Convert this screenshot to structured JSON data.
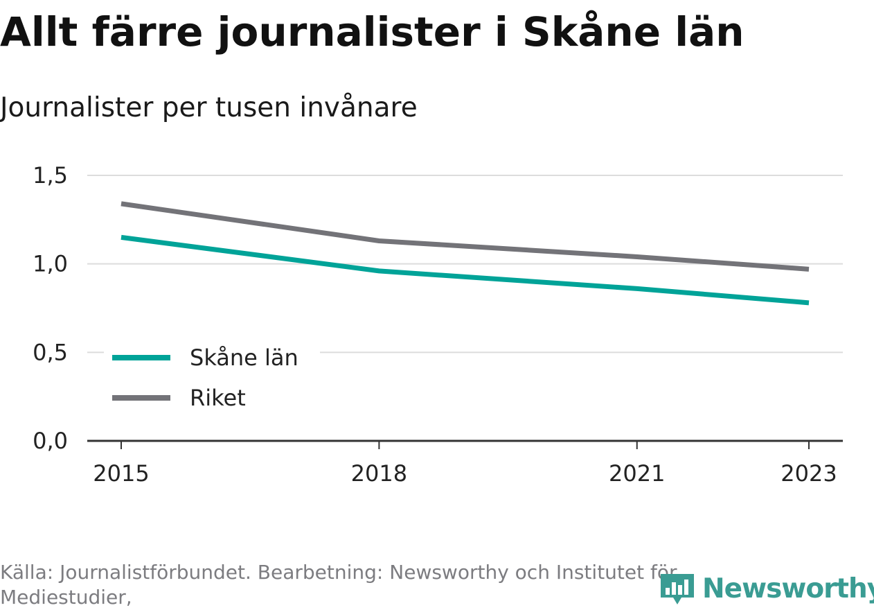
{
  "header": {
    "title": "Allt färre journalister i Skåne län",
    "subtitle": "Journalister per tusen invånare"
  },
  "footer": {
    "source": "Källa: Journalistförbundet. Bearbetning: Newsworthy och Institutet för Mediestudier,",
    "logo_text": "Newsworthy",
    "logo_color": "#3a9c93"
  },
  "chart_data": {
    "type": "line",
    "title": "Allt färre journalister i Skåne län",
    "subtitle": "Journalister per tusen invånare",
    "xlabel": "",
    "ylabel": "",
    "x": [
      2015,
      2018,
      2021,
      2023
    ],
    "x_tick_labels": [
      "2015",
      "2018",
      "2021",
      "2023"
    ],
    "xlim": [
      2015,
      2023
    ],
    "ylim": [
      0,
      1.5
    ],
    "y_ticks": [
      0,
      0.5,
      1.0,
      1.5
    ],
    "y_tick_labels": [
      "0,0",
      "0,5",
      "1,0",
      "1,5"
    ],
    "grid": true,
    "legend_position": "bottom-left",
    "series": [
      {
        "name": "Skåne län",
        "color": "#00a398",
        "values": [
          1.15,
          0.96,
          0.86,
          0.78
        ]
      },
      {
        "name": "Riket",
        "color": "#737378",
        "values": [
          1.34,
          1.13,
          1.04,
          0.97
        ]
      }
    ]
  }
}
